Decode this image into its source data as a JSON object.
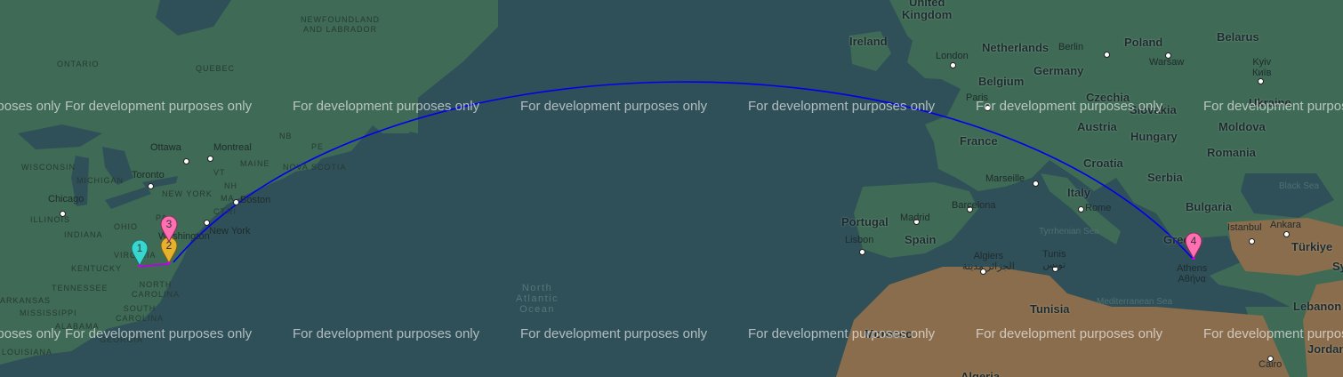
{
  "map": {
    "watermark": "For development purposes only",
    "colors": {
      "water": "#2f5058",
      "land_green": "#3f6a55",
      "land_desert": "#8a6d4c",
      "route": "#0000ee",
      "connector": "#b900e6",
      "marker_1": "#37d6cf",
      "marker_2": "#e6b12c",
      "marker_3": "#ff6fb1",
      "marker_4": "#ff6fb1"
    },
    "markers": [
      {
        "number": "1",
        "color": "#37d6cf"
      },
      {
        "number": "2",
        "color": "#e6b12c"
      },
      {
        "number": "3",
        "color": "#ff6fb1"
      },
      {
        "number": "4",
        "color": "#ff6fb1"
      }
    ],
    "labels": {
      "united_kingdom": "United\nKingdom",
      "ireland": "Ireland",
      "london": "London",
      "netherlands": "Netherlands",
      "berlin": "Berlin",
      "poland": "Poland",
      "belarus": "Belarus",
      "warsaw": "Warsaw",
      "kyiv": "Kyiv\nКиїв",
      "belgium": "Belgium",
      "germany": "Germany",
      "paris": "Paris",
      "czechia": "Czechia",
      "slovakia": "Slovakia",
      "ukraine": "Ukraine",
      "austria": "Austria",
      "moldova": "Moldova",
      "hungary": "Hungary",
      "france": "France",
      "romania": "Romania",
      "croatia": "Croatia",
      "marseille": "Marseille",
      "serbia": "Serbia",
      "black_sea": "Black Sea",
      "italy": "Italy",
      "portugal": "Portugal",
      "madrid": "Madrid",
      "barcelona": "Barcelona",
      "rome": "Rome",
      "bulgaria": "Bulgaria",
      "ankara": "Ankara",
      "istanbul": "Istanbul",
      "spain": "Spain",
      "lisbon": "Lisbon",
      "tyrrhenian_sea": "Tyrrhenian Sea",
      "greece": "Greece",
      "turkiye": "Türkiye",
      "syria": "Sy",
      "algiers": "Algiers\nالجزائر مدينة",
      "tunis": "Tunis\nتونس",
      "athens": "Athens\nΑθήνα",
      "tunisia": "Tunisia",
      "mediterranean_sea": "Mediterranean Sea",
      "lebanon": "Lebanon",
      "morocco": "Morocco",
      "jordan": "Jordan",
      "cairo": "Cairo",
      "algeria": "Algeria",
      "newfoundland": "NEWFOUNDLAND\nAND LABRADOR",
      "ontario": "ONTARIO",
      "quebec": "QUEBEC",
      "ottawa": "Ottawa",
      "montreal": "Montreal",
      "nb": "NB",
      "pe": "PE",
      "maine": "MAINE",
      "nova_scotia": "NOVA SCOTIA",
      "toronto": "Toronto",
      "wisconsin": "WISCONSIN",
      "michigan": "MICHIGAN",
      "vt": "VT",
      "nh": "NH",
      "new_york_state": "NEW YORK",
      "boston": "Boston",
      "chicago": "Chicago",
      "ma": "MA",
      "ct": "CT",
      "ri": "RI",
      "illinois": "ILLINOIS",
      "indiana": "INDIANA",
      "ohio": "OHIO",
      "pa": "PA",
      "new_york_city": "New York",
      "washington": "Washington",
      "virginia": "VIRGINIA",
      "kentucky": "KENTUCKY",
      "tennessee": "TENNESSEE",
      "north_carolina": "NORTH\nCAROLINA",
      "north_atlantic_ocean": "North\nAtlantic\nOcean",
      "arkansas": "ARKANSAS",
      "mississippi": "MISSISSIPPI",
      "south_carolina": "SOUTH\nCAROLINA",
      "alabama": "ALABAMA",
      "georgia": "GEORGIA",
      "louisiana": "LOUISIANA"
    }
  }
}
